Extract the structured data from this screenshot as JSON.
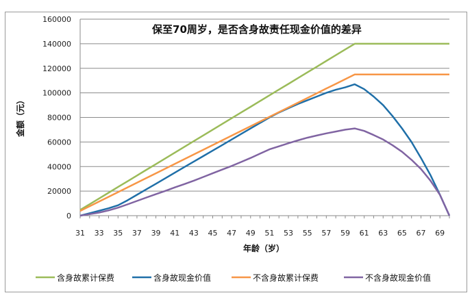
{
  "chart_data": {
    "type": "line",
    "title": "保至70周岁，是否含身故责任现金价值的差异",
    "xlabel": "年龄（岁）",
    "ylabel": "金额（元）",
    "ylim": [
      0,
      160000
    ],
    "yticks": [
      0,
      20000,
      40000,
      60000,
      80000,
      100000,
      120000,
      140000,
      160000
    ],
    "x": [
      31,
      32,
      33,
      34,
      35,
      36,
      37,
      38,
      39,
      40,
      41,
      42,
      43,
      44,
      45,
      46,
      47,
      48,
      49,
      50,
      51,
      52,
      53,
      54,
      55,
      56,
      57,
      58,
      59,
      60,
      61,
      62,
      63,
      64,
      65,
      66,
      67,
      68,
      69,
      70
    ],
    "xticklabels": [
      "31",
      "33",
      "35",
      "37",
      "39",
      "41",
      "43",
      "45",
      "47",
      "49",
      "51",
      "53",
      "55",
      "57",
      "59",
      "61",
      "63",
      "65",
      "67",
      "69"
    ],
    "grid": true,
    "legend": "bottom",
    "series": [
      {
        "name": "含身故累计保费",
        "color": "#9bbb59",
        "values": [
          4667,
          9333,
          14000,
          18667,
          23333,
          28000,
          32667,
          37333,
          42000,
          46667,
          51333,
          56000,
          60667,
          65333,
          70000,
          74667,
          79333,
          84000,
          88667,
          93333,
          98000,
          102667,
          107333,
          112000,
          116667,
          121333,
          126000,
          130667,
          135333,
          140000,
          140000,
          140000,
          140000,
          140000,
          140000,
          140000,
          140000,
          140000,
          140000,
          140000
        ]
      },
      {
        "name": "含身故现金价值",
        "color": "#1f6fa8",
        "values": [
          0,
          2000,
          4000,
          6000,
          8500,
          12500,
          17000,
          21500,
          26000,
          30500,
          35000,
          39500,
          44000,
          48500,
          53000,
          57500,
          62000,
          66500,
          71000,
          75500,
          80000,
          84000,
          87500,
          91000,
          94000,
          97000,
          100000,
          102500,
          104500,
          107000,
          103000,
          97000,
          90000,
          81000,
          71000,
          60000,
          47000,
          33000,
          17000,
          0
        ]
      },
      {
        "name": "不含身故累计保费",
        "color": "#f79646",
        "values": [
          3833,
          7667,
          11500,
          15333,
          19167,
          23000,
          26833,
          30667,
          34500,
          38333,
          42167,
          46000,
          49833,
          53667,
          57500,
          61333,
          65167,
          69000,
          72833,
          76667,
          80500,
          84333,
          88167,
          92000,
          95833,
          99667,
          103500,
          107333,
          111167,
          115000,
          115000,
          115000,
          115000,
          115000,
          115000,
          115000,
          115000,
          115000,
          115000,
          115000
        ]
      },
      {
        "name": "不含身故现金价值",
        "color": "#8064a2",
        "values": [
          0,
          1200,
          2500,
          4300,
          6500,
          9200,
          12000,
          14800,
          17500,
          20200,
          23000,
          25700,
          28500,
          31500,
          34500,
          37500,
          40500,
          43700,
          47000,
          50500,
          54000,
          56500,
          59000,
          61300,
          63500,
          65300,
          67000,
          68500,
          70000,
          71000,
          69000,
          65700,
          62000,
          57300,
          52000,
          45500,
          38000,
          28500,
          17000,
          0
        ]
      }
    ]
  }
}
